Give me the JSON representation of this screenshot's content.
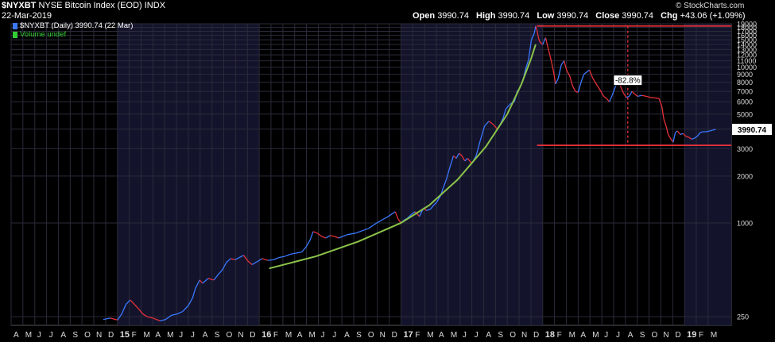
{
  "header": {
    "symbol": "$NYXBT",
    "name": "NYSE Bitcoin Index (EOD)",
    "exchange": "INDX",
    "date": "22-Mar-2019",
    "brand": "© StockCharts.com",
    "ohlc": [
      {
        "label": "Open",
        "value": "3990.74"
      },
      {
        "label": "High",
        "value": "3990.74"
      },
      {
        "label": "Low",
        "value": "3990.74"
      },
      {
        "label": "Close",
        "value": "3990.74"
      },
      {
        "label": "Chg",
        "value": "+43.06 (+1.09%)"
      }
    ]
  },
  "legend": [
    {
      "text": "$NYXBT (Daily) 3990.74 (22 Mar)",
      "color": "#3b78ff"
    },
    {
      "text": "Volume undef",
      "color": "#33cc33"
    }
  ],
  "chart_data": {
    "type": "line",
    "scale": "log",
    "ylim": [
      220,
      19000
    ],
    "xlim": [
      2014.25,
      2019.33
    ],
    "yticks": [
      19000,
      18000,
      17000,
      16000,
      15000,
      14000,
      13000,
      12000,
      11000,
      10000,
      9000,
      8000,
      7000,
      6000,
      5000,
      4000,
      3000,
      2000,
      1000,
      250
    ],
    "last_price_label": "3990.74",
    "xticks": [
      {
        "t": 2014.25,
        "label": "A"
      },
      {
        "t": 2014.333,
        "label": "M"
      },
      {
        "t": 2014.417,
        "label": "J"
      },
      {
        "t": 2014.5,
        "label": "J"
      },
      {
        "t": 2014.583,
        "label": "A"
      },
      {
        "t": 2014.667,
        "label": "S"
      },
      {
        "t": 2014.75,
        "label": "O"
      },
      {
        "t": 2014.833,
        "label": "N"
      },
      {
        "t": 2014.917,
        "label": "D"
      },
      {
        "t": 2015.0,
        "label": "15",
        "bold": true
      },
      {
        "t": 2015.083,
        "label": "F"
      },
      {
        "t": 2015.167,
        "label": "M"
      },
      {
        "t": 2015.25,
        "label": "A"
      },
      {
        "t": 2015.333,
        "label": "M"
      },
      {
        "t": 2015.417,
        "label": "J"
      },
      {
        "t": 2015.5,
        "label": "J"
      },
      {
        "t": 2015.583,
        "label": "A"
      },
      {
        "t": 2015.667,
        "label": "S"
      },
      {
        "t": 2015.75,
        "label": "O"
      },
      {
        "t": 2015.833,
        "label": "N"
      },
      {
        "t": 2015.917,
        "label": "D"
      },
      {
        "t": 2016.0,
        "label": "16",
        "bold": true
      },
      {
        "t": 2016.083,
        "label": "F"
      },
      {
        "t": 2016.167,
        "label": "M"
      },
      {
        "t": 2016.25,
        "label": "A"
      },
      {
        "t": 2016.333,
        "label": "M"
      },
      {
        "t": 2016.417,
        "label": "J"
      },
      {
        "t": 2016.5,
        "label": "J"
      },
      {
        "t": 2016.583,
        "label": "A"
      },
      {
        "t": 2016.667,
        "label": "S"
      },
      {
        "t": 2016.75,
        "label": "O"
      },
      {
        "t": 2016.833,
        "label": "N"
      },
      {
        "t": 2016.917,
        "label": "D"
      },
      {
        "t": 2017.0,
        "label": "17",
        "bold": true
      },
      {
        "t": 2017.083,
        "label": "F"
      },
      {
        "t": 2017.167,
        "label": "M"
      },
      {
        "t": 2017.25,
        "label": "A"
      },
      {
        "t": 2017.333,
        "label": "M"
      },
      {
        "t": 2017.417,
        "label": "J"
      },
      {
        "t": 2017.5,
        "label": "J"
      },
      {
        "t": 2017.583,
        "label": "A"
      },
      {
        "t": 2017.667,
        "label": "S"
      },
      {
        "t": 2017.75,
        "label": "O"
      },
      {
        "t": 2017.833,
        "label": "N"
      },
      {
        "t": 2017.917,
        "label": "D"
      },
      {
        "t": 2018.0,
        "label": "18",
        "bold": true
      },
      {
        "t": 2018.083,
        "label": "F"
      },
      {
        "t": 2018.167,
        "label": "M"
      },
      {
        "t": 2018.25,
        "label": "A"
      },
      {
        "t": 2018.333,
        "label": "M"
      },
      {
        "t": 2018.417,
        "label": "J"
      },
      {
        "t": 2018.5,
        "label": "J"
      },
      {
        "t": 2018.583,
        "label": "A"
      },
      {
        "t": 2018.667,
        "label": "S"
      },
      {
        "t": 2018.75,
        "label": "O"
      },
      {
        "t": 2018.833,
        "label": "N"
      },
      {
        "t": 2018.917,
        "label": "D"
      },
      {
        "t": 2019.0,
        "label": "19",
        "bold": true
      },
      {
        "t": 2019.083,
        "label": "F"
      },
      {
        "t": 2019.167,
        "label": "M"
      }
    ],
    "shaded_years": [
      [
        2015.0,
        2016.0
      ],
      [
        2017.0,
        2018.0
      ],
      [
        2019.0,
        2019.33
      ]
    ],
    "series": [
      {
        "color_up": "#3b78ff",
        "color_down": "#e8303a",
        "points": [
          [
            2014.9,
            240
          ],
          [
            2014.95,
            245
          ],
          [
            2015.0,
            238
          ],
          [
            2015.03,
            260
          ],
          [
            2015.06,
            300
          ],
          [
            2015.09,
            320
          ],
          [
            2015.12,
            300
          ],
          [
            2015.15,
            280
          ],
          [
            2015.18,
            260
          ],
          [
            2015.21,
            250
          ],
          [
            2015.25,
            245
          ],
          [
            2015.3,
            235
          ],
          [
            2015.34,
            240
          ],
          [
            2015.38,
            255
          ],
          [
            2015.42,
            260
          ],
          [
            2015.46,
            270
          ],
          [
            2015.5,
            295
          ],
          [
            2015.53,
            330
          ],
          [
            2015.55,
            380
          ],
          [
            2015.58,
            430
          ],
          [
            2015.6,
            410
          ],
          [
            2015.64,
            440
          ],
          [
            2015.68,
            430
          ],
          [
            2015.71,
            465
          ],
          [
            2015.74,
            500
          ],
          [
            2015.77,
            560
          ],
          [
            2015.8,
            590
          ],
          [
            2015.83,
            580
          ],
          [
            2015.86,
            600
          ],
          [
            2015.89,
            620
          ],
          [
            2015.92,
            570
          ],
          [
            2015.95,
            540
          ],
          [
            2015.98,
            560
          ],
          [
            2016.02,
            590
          ],
          [
            2016.06,
            575
          ],
          [
            2016.1,
            580
          ],
          [
            2016.14,
            600
          ],
          [
            2016.18,
            610
          ],
          [
            2016.22,
            630
          ],
          [
            2016.26,
            640
          ],
          [
            2016.3,
            650
          ],
          [
            2016.33,
            700
          ],
          [
            2016.36,
            780
          ],
          [
            2016.38,
            880
          ],
          [
            2016.41,
            860
          ],
          [
            2016.44,
            820
          ],
          [
            2016.47,
            800
          ],
          [
            2016.5,
            830
          ],
          [
            2016.53,
            820
          ],
          [
            2016.56,
            800
          ],
          [
            2016.59,
            820
          ],
          [
            2016.62,
            840
          ],
          [
            2016.65,
            850
          ],
          [
            2016.68,
            860
          ],
          [
            2016.71,
            880
          ],
          [
            2016.74,
            900
          ],
          [
            2016.77,
            920
          ],
          [
            2016.8,
            960
          ],
          [
            2016.83,
            1000
          ],
          [
            2016.87,
            1050
          ],
          [
            2016.91,
            1100
          ],
          [
            2016.94,
            1150
          ],
          [
            2016.96,
            1180
          ],
          [
            2016.98,
            1060
          ],
          [
            2017.0,
            1000
          ],
          [
            2017.02,
            1040
          ],
          [
            2017.05,
            1080
          ],
          [
            2017.08,
            1150
          ],
          [
            2017.1,
            1180
          ],
          [
            2017.13,
            1100
          ],
          [
            2017.16,
            1250
          ],
          [
            2017.18,
            1200
          ],
          [
            2017.21,
            1230
          ],
          [
            2017.23,
            1300
          ],
          [
            2017.25,
            1350
          ],
          [
            2017.28,
            1500
          ],
          [
            2017.3,
            1700
          ],
          [
            2017.32,
            1900
          ],
          [
            2017.34,
            2200
          ],
          [
            2017.37,
            2700
          ],
          [
            2017.39,
            2600
          ],
          [
            2017.41,
            2800
          ],
          [
            2017.43,
            2700
          ],
          [
            2017.45,
            2500
          ],
          [
            2017.47,
            2600
          ],
          [
            2017.5,
            2400
          ],
          [
            2017.53,
            2700
          ],
          [
            2017.56,
            3400
          ],
          [
            2017.59,
            4200
          ],
          [
            2017.62,
            4500
          ],
          [
            2017.65,
            4300
          ],
          [
            2017.68,
            4000
          ],
          [
            2017.7,
            4300
          ],
          [
            2017.72,
            4700
          ],
          [
            2017.74,
            5400
          ],
          [
            2017.77,
            5800
          ],
          [
            2017.8,
            6000
          ],
          [
            2017.82,
            7000
          ],
          [
            2017.84,
            7400
          ],
          [
            2017.86,
            8200
          ],
          [
            2017.88,
            9800
          ],
          [
            2017.9,
            11200
          ],
          [
            2017.92,
            15000
          ],
          [
            2017.94,
            16500
          ],
          [
            2017.95,
            18400
          ],
          [
            2017.96,
            17200
          ],
          [
            2017.97,
            15400
          ],
          [
            2017.98,
            14500
          ],
          [
            2018.0,
            14000
          ],
          [
            2018.02,
            15500
          ],
          [
            2018.04,
            13000
          ],
          [
            2018.06,
            11000
          ],
          [
            2018.08,
            9000
          ],
          [
            2018.09,
            7800
          ],
          [
            2018.11,
            8500
          ],
          [
            2018.13,
            10300
          ],
          [
            2018.15,
            11000
          ],
          [
            2018.17,
            9500
          ],
          [
            2018.19,
            8800
          ],
          [
            2018.21,
            7600
          ],
          [
            2018.23,
            7000
          ],
          [
            2018.25,
            6900
          ],
          [
            2018.27,
            8000
          ],
          [
            2018.29,
            9000
          ],
          [
            2018.31,
            9300
          ],
          [
            2018.33,
            9600
          ],
          [
            2018.35,
            8600
          ],
          [
            2018.37,
            8000
          ],
          [
            2018.39,
            7500
          ],
          [
            2018.41,
            7000
          ],
          [
            2018.43,
            6500
          ],
          [
            2018.45,
            6300
          ],
          [
            2018.47,
            6000
          ],
          [
            2018.49,
            6600
          ],
          [
            2018.51,
            7400
          ],
          [
            2018.53,
            8100
          ],
          [
            2018.55,
            7500
          ],
          [
            2018.57,
            6800
          ],
          [
            2018.59,
            6400
          ],
          [
            2018.61,
            6500
          ],
          [
            2018.63,
            7000
          ],
          [
            2018.65,
            6700
          ],
          [
            2018.67,
            6500
          ],
          [
            2018.7,
            6600
          ],
          [
            2018.73,
            6500
          ],
          [
            2018.76,
            6400
          ],
          [
            2018.79,
            6350
          ],
          [
            2018.82,
            6300
          ],
          [
            2018.84,
            5600
          ],
          [
            2018.855,
            4600
          ],
          [
            2018.87,
            4200
          ],
          [
            2018.885,
            3700
          ],
          [
            2018.9,
            3500
          ],
          [
            2018.92,
            3300
          ],
          [
            2018.935,
            3800
          ],
          [
            2018.95,
            3900
          ],
          [
            2018.97,
            3700
          ],
          [
            2018.99,
            3750
          ],
          [
            2019.01,
            3600
          ],
          [
            2019.03,
            3550
          ],
          [
            2019.05,
            3450
          ],
          [
            2019.07,
            3500
          ],
          [
            2019.09,
            3600
          ],
          [
            2019.11,
            3800
          ],
          [
            2019.13,
            3850
          ],
          [
            2019.15,
            3850
          ],
          [
            2019.18,
            3900
          ],
          [
            2019.2,
            3950
          ],
          [
            2019.22,
            3990.74
          ]
        ]
      }
    ],
    "overlay_curve": {
      "color": "#8bc34a",
      "points": [
        [
          2016.07,
          510
        ],
        [
          2016.4,
          610
        ],
        [
          2016.7,
          760
        ],
        [
          2017.0,
          1000
        ],
        [
          2017.2,
          1300
        ],
        [
          2017.4,
          1900
        ],
        [
          2017.6,
          3100
        ],
        [
          2017.75,
          5000
        ],
        [
          2017.85,
          7800
        ],
        [
          2017.92,
          11500
        ],
        [
          2017.95,
          14000
        ]
      ]
    },
    "annotations": {
      "top_line": 18400,
      "bottom_line": 3150,
      "drop_label": "-82.8%",
      "line_color": "#e8303a"
    }
  }
}
